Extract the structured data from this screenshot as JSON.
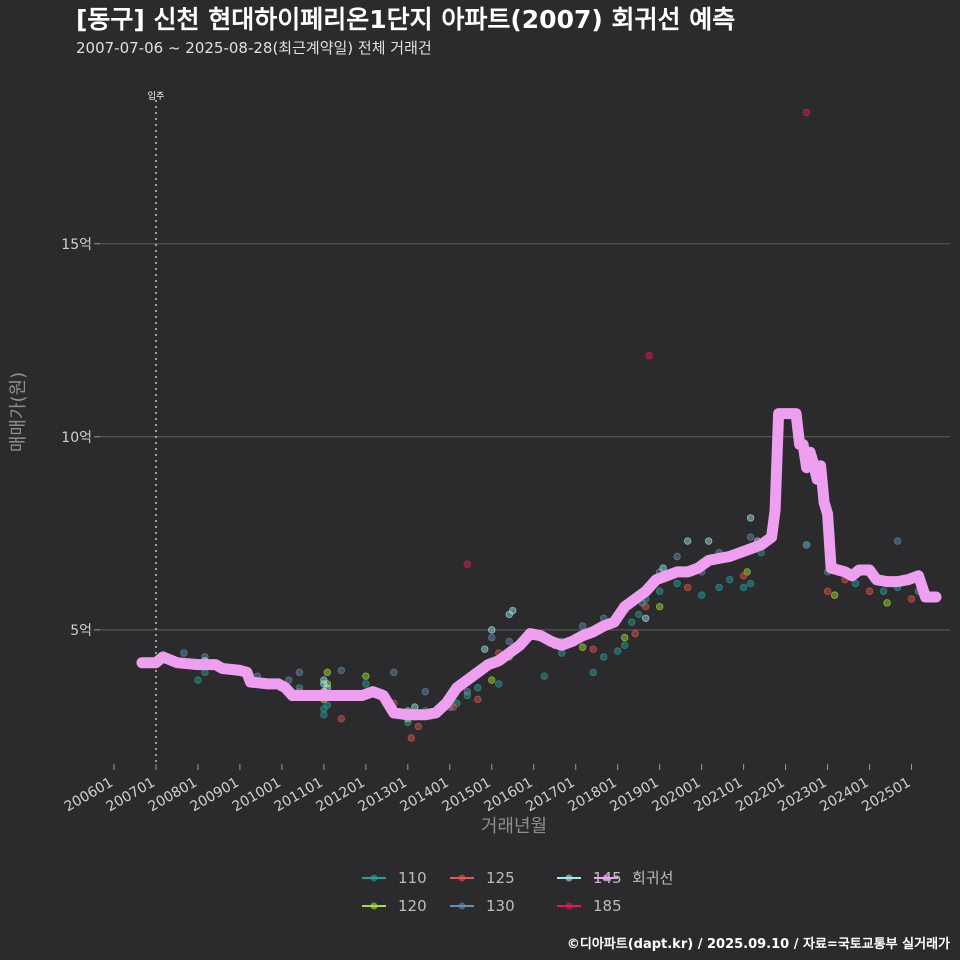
{
  "chart_data": {
    "type": "scatter",
    "title": "[동구] 신천 현대하이페리온1단지 아파트(2007) 회귀선 예측",
    "subtitle": "2007-07-06 ~ 2025-08-28(최근계약일) 전체 거래건",
    "xlabel": "거래년월",
    "ylabel": "매매가(원)",
    "x_range": [
      "2005-09",
      "2025-12"
    ],
    "ylim": [
      1.5,
      19.5
    ],
    "y_ticks": [
      {
        "value": 5,
        "label": "5억"
      },
      {
        "value": 10,
        "label": "10억"
      },
      {
        "value": 15,
        "label": "15억"
      }
    ],
    "x_ticks": [
      "200601",
      "200701",
      "200801",
      "200901",
      "201001",
      "201101",
      "201201",
      "201301",
      "201401",
      "201501",
      "201601",
      "201701",
      "201801",
      "201901",
      "202001",
      "202101",
      "202201",
      "202301",
      "202401",
      "202501"
    ],
    "grid": true,
    "legend_position": "bottom",
    "annotation": {
      "label": "입주",
      "x": "2007-01"
    },
    "series": [
      {
        "name": "110",
        "color": "#2aa198",
        "points": [
          [
            "2008-01",
            3.7
          ],
          [
            "2008-03",
            3.9
          ],
          [
            "2009-03",
            3.75
          ],
          [
            "2010-06",
            3.5
          ],
          [
            "2011-01",
            2.8
          ],
          [
            "2011-01",
            2.95
          ],
          [
            "2011-02",
            3.05
          ],
          [
            "2012-01",
            3.6
          ],
          [
            "2013-01",
            2.6
          ],
          [
            "2013-03",
            2.75
          ],
          [
            "2013-06",
            2.9
          ],
          [
            "2014-03",
            3.1
          ],
          [
            "2014-06",
            3.3
          ],
          [
            "2014-09",
            3.5
          ],
          [
            "2015-03",
            3.6
          ],
          [
            "2016-04",
            3.8
          ],
          [
            "2016-09",
            4.4
          ],
          [
            "2017-06",
            3.9
          ],
          [
            "2017-09",
            4.3
          ],
          [
            "2018-01",
            4.45
          ],
          [
            "2018-03",
            4.6
          ],
          [
            "2018-05",
            5.2
          ],
          [
            "2018-07",
            5.4
          ],
          [
            "2018-09",
            5.8
          ],
          [
            "2019-01",
            6.0
          ],
          [
            "2019-06",
            6.2
          ],
          [
            "2020-01",
            5.9
          ],
          [
            "2020-06",
            6.1
          ],
          [
            "2020-09",
            6.3
          ],
          [
            "2021-01",
            6.1
          ],
          [
            "2021-03",
            6.2
          ],
          [
            "2021-06",
            7.0
          ],
          [
            "2022-07",
            7.2
          ],
          [
            "2023-01",
            6.5
          ],
          [
            "2023-09",
            6.2
          ],
          [
            "2024-05",
            6.0
          ],
          [
            "2024-09",
            6.1
          ]
        ]
      },
      {
        "name": "120",
        "color": "#a6e22e",
        "points": [
          [
            "2011-01",
            3.2
          ],
          [
            "2011-01",
            3.4
          ],
          [
            "2011-02",
            3.6
          ],
          [
            "2011-02",
            3.9
          ],
          [
            "2012-01",
            3.8
          ],
          [
            "2013-01",
            2.7
          ],
          [
            "2013-02",
            2.85
          ],
          [
            "2014-01",
            3.3
          ],
          [
            "2015-01",
            3.7
          ],
          [
            "2015-06",
            4.3
          ],
          [
            "2016-07",
            4.6
          ],
          [
            "2017-03",
            4.55
          ],
          [
            "2018-03",
            4.8
          ],
          [
            "2019-01",
            5.6
          ],
          [
            "2021-02",
            6.5
          ],
          [
            "2023-03",
            5.9
          ],
          [
            "2024-06",
            5.7
          ]
        ]
      },
      {
        "name": "125",
        "color": "#e05a4f",
        "points": [
          [
            "2010-06",
            3.4
          ],
          [
            "2011-06",
            2.7
          ],
          [
            "2012-09",
            3.1
          ],
          [
            "2013-02",
            2.2
          ],
          [
            "2013-04",
            2.5
          ],
          [
            "2013-09",
            2.8
          ],
          [
            "2014-02",
            3.0
          ],
          [
            "2014-09",
            3.2
          ],
          [
            "2015-03",
            4.4
          ],
          [
            "2017-06",
            4.5
          ],
          [
            "2018-06",
            4.9
          ],
          [
            "2018-09",
            5.6
          ],
          [
            "2019-09",
            6.1
          ],
          [
            "2021-01",
            6.4
          ],
          [
            "2023-01",
            6.0
          ],
          [
            "2023-06",
            6.3
          ],
          [
            "2024-01",
            6.0
          ],
          [
            "2024-06",
            6.2
          ],
          [
            "2025-01",
            5.8
          ]
        ]
      },
      {
        "name": "130",
        "color": "#6b8cae",
        "points": [
          [
            "2007-09",
            4.4
          ],
          [
            "2008-03",
            4.3
          ],
          [
            "2008-06",
            4.1
          ],
          [
            "2009-06",
            3.8
          ],
          [
            "2010-03",
            3.7
          ],
          [
            "2010-06",
            3.9
          ],
          [
            "2011-03",
            3.3
          ],
          [
            "2011-06",
            3.95
          ],
          [
            "2012-09",
            3.9
          ],
          [
            "2013-06",
            3.4
          ],
          [
            "2014-01",
            3.0
          ],
          [
            "2014-06",
            3.4
          ],
          [
            "2015-01",
            4.8
          ],
          [
            "2015-06",
            4.7
          ],
          [
            "2016-03",
            4.8
          ],
          [
            "2016-09",
            4.7
          ],
          [
            "2017-03",
            5.1
          ],
          [
            "2017-09",
            5.3
          ],
          [
            "2018-03",
            5.5
          ],
          [
            "2018-08",
            5.7
          ],
          [
            "2019-01",
            6.5
          ],
          [
            "2019-06",
            6.9
          ],
          [
            "2020-01",
            6.5
          ],
          [
            "2020-06",
            7.0
          ],
          [
            "2021-03",
            7.4
          ],
          [
            "2022-07",
            7.2
          ],
          [
            "2023-06",
            6.5
          ],
          [
            "2024-09",
            7.3
          ],
          [
            "2025-03",
            6.0
          ]
        ]
      },
      {
        "name": "145",
        "color": "#a8e6ef",
        "points": [
          [
            "2008-03",
            4.2
          ],
          [
            "2011-01",
            3.4
          ],
          [
            "2011-01",
            3.6
          ],
          [
            "2011-01",
            3.7
          ],
          [
            "2011-02",
            3.5
          ],
          [
            "2013-01",
            2.9
          ],
          [
            "2013-03",
            3.0
          ],
          [
            "2014-11",
            4.5
          ],
          [
            "2015-01",
            5.0
          ],
          [
            "2015-06",
            5.4
          ],
          [
            "2015-07",
            5.5
          ],
          [
            "2018-09",
            5.3
          ],
          [
            "2019-02",
            6.6
          ],
          [
            "2019-09",
            7.3
          ],
          [
            "2020-03",
            7.3
          ],
          [
            "2021-03",
            7.9
          ],
          [
            "2021-05",
            7.3
          ]
        ]
      },
      {
        "name": "185",
        "color": "#e8175d",
        "points": [
          [
            "2014-06",
            6.7
          ],
          [
            "2018-10",
            12.1
          ],
          [
            "2022-07",
            18.4
          ]
        ]
      }
    ],
    "regression": {
      "name": "회귀선",
      "color": "#ee9ff0",
      "points": [
        [
          "2006-09",
          4.15
        ],
        [
          "2007-01",
          4.15
        ],
        [
          "2007-03",
          4.3
        ],
        [
          "2007-07",
          4.15
        ],
        [
          "2008-01",
          4.1
        ],
        [
          "2008-06",
          4.1
        ],
        [
          "2008-08",
          4.0
        ],
        [
          "2009-01",
          3.95
        ],
        [
          "2009-03",
          3.9
        ],
        [
          "2009-04",
          3.65
        ],
        [
          "2009-09",
          3.6
        ],
        [
          "2009-12",
          3.6
        ],
        [
          "2010-02",
          3.5
        ],
        [
          "2010-04",
          3.3
        ],
        [
          "2011-01",
          3.3
        ],
        [
          "2011-12",
          3.3
        ],
        [
          "2012-03",
          3.4
        ],
        [
          "2012-06",
          3.3
        ],
        [
          "2012-09",
          2.85
        ],
        [
          "2013-01",
          2.8
        ],
        [
          "2013-06",
          2.8
        ],
        [
          "2013-09",
          2.85
        ],
        [
          "2013-12",
          3.1
        ],
        [
          "2014-03",
          3.5
        ],
        [
          "2014-06",
          3.7
        ],
        [
          "2014-09",
          3.9
        ],
        [
          "2014-12",
          4.1
        ],
        [
          "2015-03",
          4.2
        ],
        [
          "2015-06",
          4.4
        ],
        [
          "2015-09",
          4.6
        ],
        [
          "2015-12",
          4.9
        ],
        [
          "2016-03",
          4.85
        ],
        [
          "2016-06",
          4.7
        ],
        [
          "2016-09",
          4.6
        ],
        [
          "2016-12",
          4.7
        ],
        [
          "2017-03",
          4.85
        ],
        [
          "2017-06",
          4.95
        ],
        [
          "2017-09",
          5.1
        ],
        [
          "2017-12",
          5.2
        ],
        [
          "2018-03",
          5.6
        ],
        [
          "2018-06",
          5.8
        ],
        [
          "2018-09",
          6.0
        ],
        [
          "2018-12",
          6.3
        ],
        [
          "2019-03",
          6.4
        ],
        [
          "2019-06",
          6.5
        ],
        [
          "2019-09",
          6.5
        ],
        [
          "2019-12",
          6.6
        ],
        [
          "2020-03",
          6.8
        ],
        [
          "2020-06",
          6.85
        ],
        [
          "2020-09",
          6.9
        ],
        [
          "2020-12",
          7.0
        ],
        [
          "2021-03",
          7.1
        ],
        [
          "2021-06",
          7.2
        ],
        [
          "2021-09",
          7.4
        ],
        [
          "2021-10",
          8.1
        ],
        [
          "2021-11",
          10.6
        ],
        [
          "2022-01",
          10.6
        ],
        [
          "2022-04",
          10.6
        ],
        [
          "2022-05",
          9.8
        ],
        [
          "2022-06",
          9.8
        ],
        [
          "2022-07",
          9.2
        ],
        [
          "2022-08",
          9.6
        ],
        [
          "2022-09",
          9.3
        ],
        [
          "2022-10",
          8.9
        ],
        [
          "2022-11",
          9.25
        ],
        [
          "2022-12",
          8.3
        ],
        [
          "2023-01",
          8.0
        ],
        [
          "2023-02",
          6.6
        ],
        [
          "2023-06",
          6.5
        ],
        [
          "2023-08",
          6.4
        ],
        [
          "2023-10",
          6.55
        ],
        [
          "2024-01",
          6.55
        ],
        [
          "2024-03",
          6.3
        ],
        [
          "2024-06",
          6.25
        ],
        [
          "2024-09",
          6.25
        ],
        [
          "2024-12",
          6.3
        ],
        [
          "2025-03",
          6.4
        ],
        [
          "2025-05",
          5.85
        ],
        [
          "2025-08",
          5.85
        ]
      ]
    },
    "legend": [
      {
        "label": "110",
        "color": "#2aa198"
      },
      {
        "label": "125",
        "color": "#e05a4f"
      },
      {
        "label": "145",
        "color": "#a8e6ef"
      },
      {
        "label": "회귀선",
        "color": "#ee9ff0"
      },
      {
        "label": "120",
        "color": "#a6e22e"
      },
      {
        "label": "130",
        "color": "#6b8cae"
      },
      {
        "label": "185",
        "color": "#e8175d"
      }
    ]
  },
  "footer": "©디아파트(dapt.kr) / 2025.09.10 / 자료=국토교통부 실거래가"
}
